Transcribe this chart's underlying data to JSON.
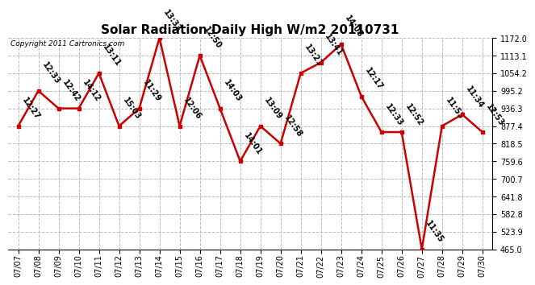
{
  "title": "Solar Radiation Daily High W/m2 20110731",
  "copyright": "Copyright 2011 Cartronics.com",
  "dates": [
    "07/07",
    "07/08",
    "07/09",
    "07/10",
    "07/11",
    "07/12",
    "07/13",
    "07/14",
    "07/15",
    "07/16",
    "07/17",
    "07/18",
    "07/19",
    "07/20",
    "07/21",
    "07/22",
    "07/23",
    "07/24",
    "07/25",
    "07/26",
    "07/27",
    "07/28",
    "07/29",
    "07/30"
  ],
  "values": [
    877.4,
    995.2,
    936.3,
    936.3,
    1054.2,
    877.4,
    936.3,
    1172.0,
    877.4,
    1113.1,
    936.3,
    759.6,
    877.4,
    818.5,
    1054.2,
    1090.0,
    1151.0,
    977.0,
    857.0,
    857.0,
    465.0,
    877.4,
    916.0,
    857.0
  ],
  "time_labels": [
    "12:27",
    "12:33",
    "12:42",
    "14:12",
    "13:11",
    "15:03",
    "11:29",
    "13:33",
    "12:06",
    "12:50",
    "14:03",
    "14:01",
    "13:09",
    "12:58",
    "13:21",
    "13:41",
    "14:08",
    "12:17",
    "12:33",
    "12:52",
    "11:35",
    "11:53",
    "11:34",
    "12:53"
  ],
  "ytick_values": [
    465.0,
    523.9,
    582.8,
    641.8,
    700.7,
    759.6,
    818.5,
    877.4,
    936.3,
    995.2,
    1054.2,
    1113.1,
    1172.0
  ],
  "ymin": 465.0,
  "ymax": 1172.0,
  "line_color": "#cc0000",
  "marker_color": "#cc0000",
  "bg_color": "#ffffff",
  "grid_color": "#bbbbbb",
  "title_fontsize": 11,
  "tick_fontsize": 7,
  "annotation_fontsize": 7,
  "copyright_fontsize": 6.5
}
